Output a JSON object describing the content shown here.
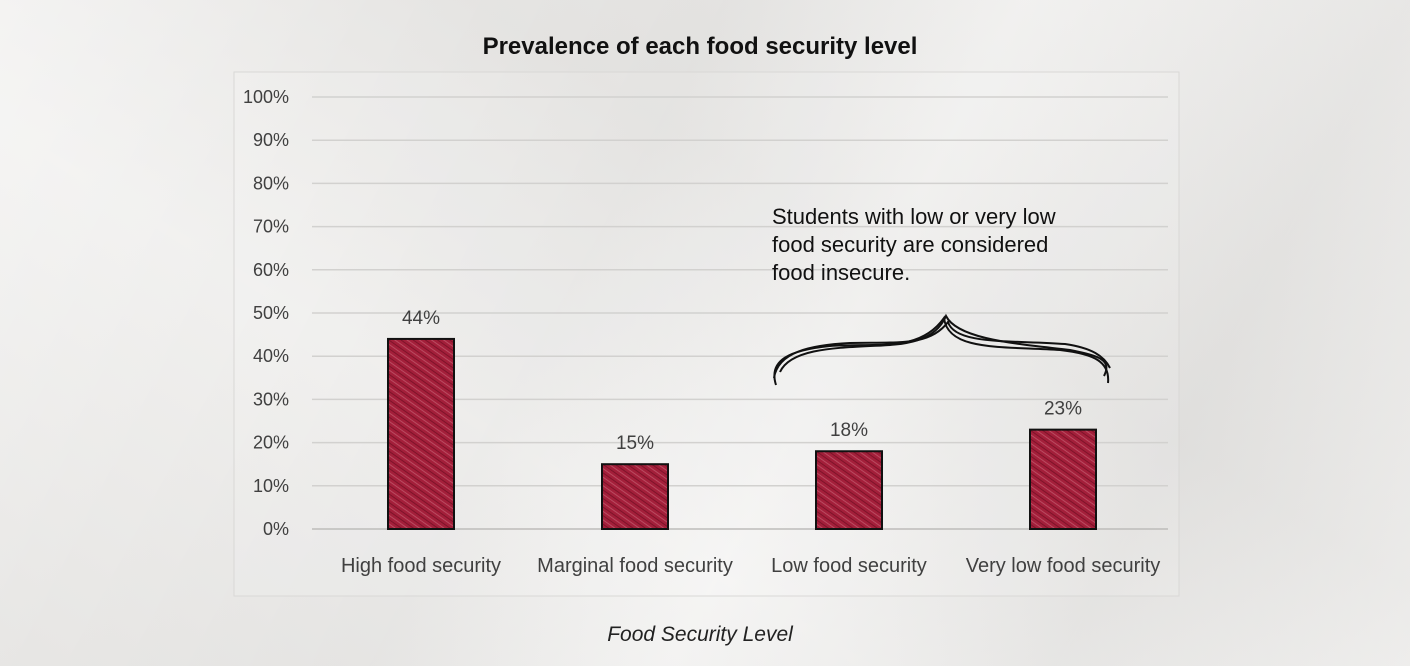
{
  "chart_data": {
    "type": "bar",
    "title": "Prevalence of each food security level",
    "xlabel": "Food Security Level",
    "ylabel": "",
    "categories": [
      "High food security",
      "Marginal food security",
      "Low food security",
      "Very low food security"
    ],
    "values": [
      44,
      15,
      18,
      23
    ],
    "data_labels": [
      "44%",
      "15%",
      "18%",
      "23%"
    ],
    "ylim": [
      0,
      100
    ],
    "y_ticks": [
      "0%",
      "10%",
      "20%",
      "30%",
      "40%",
      "50%",
      "60%",
      "70%",
      "80%",
      "90%",
      "100%"
    ],
    "grid": true,
    "legend": "none",
    "bar_color": "#a31f3a",
    "annotation": {
      "lines": [
        "Students with low or very low",
        "food security are considered",
        "food insecure."
      ],
      "applies_to": [
        "Low food security",
        "Very low food security"
      ]
    }
  }
}
